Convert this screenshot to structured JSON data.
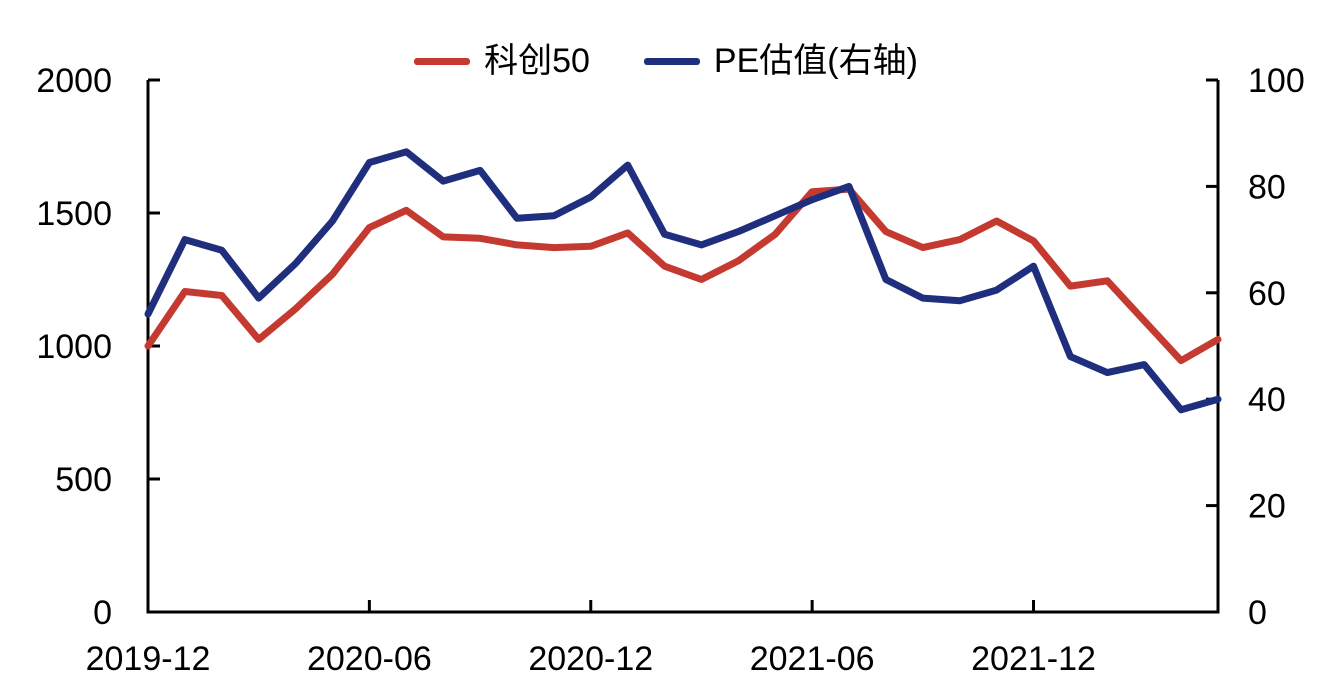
{
  "legend": {
    "series1_label": "科创50",
    "series2_label": "PE估值(右轴)"
  },
  "colors": {
    "series1": "#C53A30",
    "series2": "#1F2F7E",
    "axis": "#000000",
    "text": "#000000"
  },
  "chart_data": {
    "type": "line",
    "title": "",
    "xlabel": "",
    "ylabel_left": "",
    "ylabel_right": "",
    "grid": false,
    "legend_position": "top-center",
    "categories": [
      "2019-12",
      "2020-01",
      "2020-02",
      "2020-03",
      "2020-04",
      "2020-05",
      "2020-06",
      "2020-07",
      "2020-08",
      "2020-09",
      "2020-10",
      "2020-11",
      "2020-12",
      "2021-01",
      "2021-02",
      "2021-03",
      "2021-04",
      "2021-05",
      "2021-06",
      "2021-07",
      "2021-08",
      "2021-09",
      "2021-10",
      "2021-11",
      "2021-12",
      "2022-01",
      "2022-02",
      "2022-03",
      "2022-04",
      "2022-05"
    ],
    "series": [
      {
        "name": "科创50",
        "axis": "left",
        "color": "#C53A30",
        "values": [
          1000,
          1205,
          1190,
          1025,
          1140,
          1270,
          1445,
          1510,
          1410,
          1405,
          1380,
          1370,
          1375,
          1425,
          1300,
          1250,
          1320,
          1420,
          1580,
          1590,
          1430,
          1370,
          1400,
          1470,
          1395,
          1225,
          1245,
          1095,
          945,
          1025
        ]
      },
      {
        "name": "PE估值(右轴)",
        "axis": "right",
        "color": "#1F2F7E",
        "values": [
          56,
          70,
          68,
          59,
          65.5,
          73.5,
          84.5,
          86.5,
          81,
          83,
          74,
          74.5,
          78,
          84,
          71,
          69,
          71.5,
          74.5,
          77.5,
          80,
          62.5,
          59,
          58.5,
          60.5,
          65,
          48,
          45,
          46.5,
          38,
          40
        ]
      }
    ],
    "left_axis": {
      "min": 0,
      "max": 2000,
      "ticks": [
        0,
        500,
        1000,
        1500,
        2000
      ],
      "tick_labels": [
        "0",
        "500",
        "1000",
        "1500",
        "2000"
      ]
    },
    "right_axis": {
      "min": 0,
      "max": 100,
      "ticks": [
        0,
        20,
        40,
        60,
        80,
        100
      ],
      "tick_labels": [
        "0",
        "20",
        "40",
        "60",
        "80",
        "100"
      ]
    },
    "x_axis": {
      "tick_indices": [
        0,
        6,
        12,
        18,
        24
      ],
      "tick_labels": [
        "2019-12",
        "2020-06",
        "2020-12",
        "2021-06",
        "2021-12"
      ]
    }
  }
}
